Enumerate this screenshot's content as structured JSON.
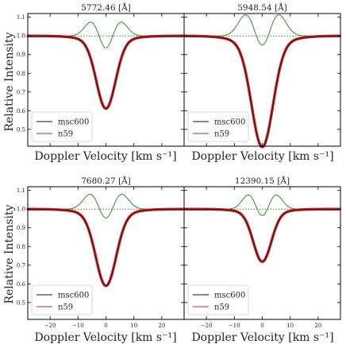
{
  "figure": {
    "ylabel": "Relative Intensity",
    "xlabel": "Doppler Velocity [km s⁻¹]"
  },
  "legend": {
    "entries": [
      "msc600",
      "n59"
    ],
    "placement": "lower-left"
  },
  "colors": {
    "msc600": "#111111",
    "n59": "#cc2222",
    "difference": "#2e8b2e",
    "reference": "#2e8b2e"
  },
  "chart_data": [
    {
      "type": "line",
      "title": "5772.46 [Å]",
      "xlim": [
        -28,
        28
      ],
      "ylim": [
        0.41,
        1.12
      ],
      "yticks": [
        "1.1",
        "1.0",
        "0.9",
        "0.8",
        "0.7",
        "0.6",
        "0.5"
      ],
      "ytick_values": [
        1.1,
        1.0,
        0.9,
        0.8,
        0.7,
        0.6,
        0.5
      ],
      "xticks": [],
      "xtick_values": [],
      "reference_line": 1.0,
      "line": {
        "depth": 0.64,
        "width_kms": 3.4
      },
      "difference_curve": {
        "peak": 1.05,
        "trough": 0.905
      },
      "series": [
        {
          "name": "msc600",
          "style": "solid"
        },
        {
          "name": "n59",
          "style": "solid-markers"
        }
      ]
    },
    {
      "type": "line",
      "title": "5948.54 [Å]",
      "xlim": [
        -28,
        28
      ],
      "ylim": [
        0.41,
        1.12
      ],
      "yticks": [],
      "ytick_values": [
        1.1,
        1.0,
        0.9,
        0.8,
        0.7,
        0.6,
        0.5
      ],
      "xticks": [],
      "xtick_values": [],
      "reference_line": 1.0,
      "line": {
        "depth": 0.45,
        "width_kms": 3.8
      },
      "difference_curve": {
        "peak": 1.09,
        "trough": 0.905
      },
      "series": [
        {
          "name": "msc600",
          "style": "solid"
        },
        {
          "name": "n59",
          "style": "solid-markers"
        }
      ]
    },
    {
      "type": "line",
      "title": "7680.27 [Å]",
      "xlim": [
        -28,
        28
      ],
      "ylim": [
        0.41,
        1.12
      ],
      "yticks": [
        "1.1",
        "1.0",
        "0.9",
        "0.8",
        "0.7",
        "0.6",
        "0.5"
      ],
      "ytick_values": [
        1.1,
        1.0,
        0.9,
        0.8,
        0.7,
        0.6,
        0.5
      ],
      "xticks": [
        "−20",
        "−10",
        "0",
        "10",
        "20"
      ],
      "xtick_values": [
        -20,
        -10,
        0,
        10,
        20
      ],
      "reference_line": 1.0,
      "line": {
        "depth": 0.62,
        "width_kms": 3.6
      },
      "difference_curve": {
        "peak": 1.06,
        "trough": 0.92
      },
      "series": [
        {
          "name": "msc600",
          "style": "solid"
        },
        {
          "name": "n59",
          "style": "solid-markers"
        }
      ]
    },
    {
      "type": "line",
      "title": "12390.15 [Å]",
      "xlim": [
        -28,
        28
      ],
      "ylim": [
        0.41,
        1.12
      ],
      "yticks": [],
      "ytick_values": [
        1.1,
        1.0,
        0.9,
        0.8,
        0.7,
        0.6,
        0.5
      ],
      "xticks": [
        "−20",
        "−10",
        "0",
        "10",
        "20"
      ],
      "xtick_values": [
        -20,
        -10,
        0,
        10,
        20
      ],
      "reference_line": 1.0,
      "line": {
        "depth": 0.74,
        "width_kms": 3.2
      },
      "difference_curve": {
        "peak": 1.06,
        "trough": 0.935
      },
      "series": [
        {
          "name": "msc600",
          "style": "solid"
        },
        {
          "name": "n59",
          "style": "solid-markers"
        }
      ]
    }
  ]
}
